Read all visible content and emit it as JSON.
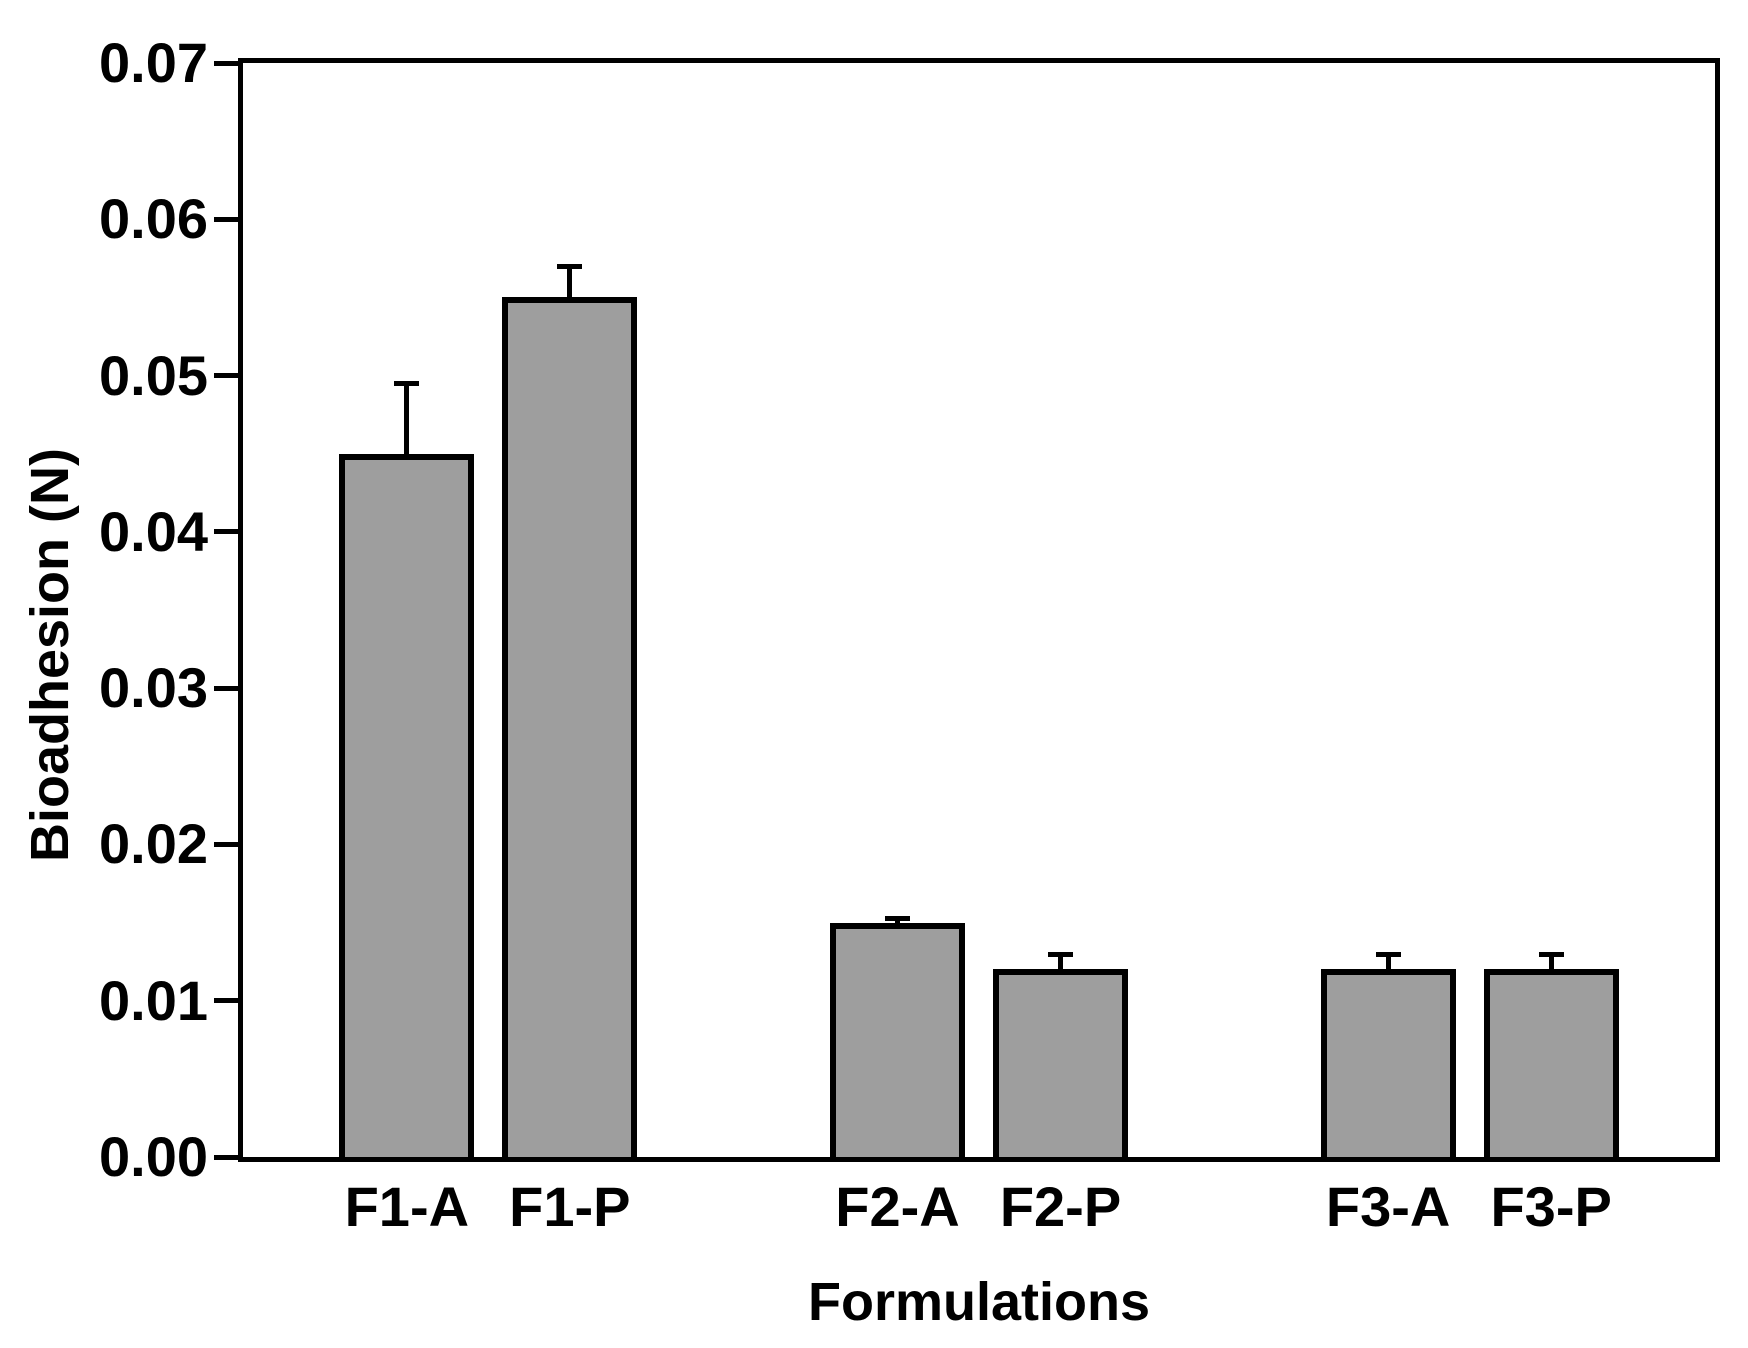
{
  "chart_data": {
    "type": "bar",
    "title": "",
    "xlabel": "Formulations",
    "ylabel": "Bioadhesion (N)",
    "categories": [
      "F1-A",
      "F1-P",
      "F2-A",
      "F2-P",
      "F3-A",
      "F3-P"
    ],
    "values": [
      0.045,
      0.055,
      0.015,
      0.012,
      0.012,
      0.012
    ],
    "errors": [
      0.0045,
      0.002,
      0.0003,
      0.001,
      0.001,
      0.001
    ],
    "error_direction": "positive-only",
    "groups": [
      [
        "F1-A",
        "F1-P"
      ],
      [
        "F2-A",
        "F2-P"
      ],
      [
        "F3-A",
        "F3-P"
      ]
    ],
    "ylim": [
      0.0,
      0.07
    ],
    "ytick_step": 0.01,
    "ytick_labels": [
      "0.00",
      "0.01",
      "0.02",
      "0.03",
      "0.04",
      "0.05",
      "0.06",
      "0.07"
    ],
    "xticks_shown": false,
    "grid": false,
    "legend": null,
    "colors": {
      "bar_fill": "#9E9E9E",
      "bar_border": "#000000",
      "axis": "#000000",
      "text": "#000000",
      "background": "#FFFFFF"
    }
  }
}
